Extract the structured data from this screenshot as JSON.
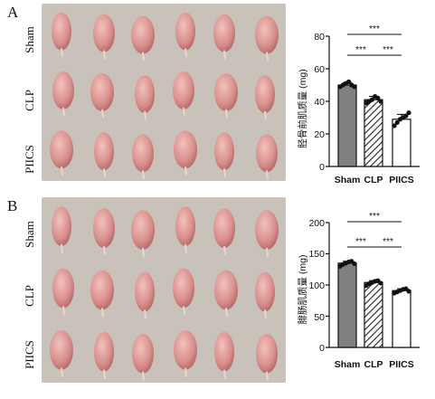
{
  "panels": [
    {
      "letter": "A",
      "row_labels": [
        "Sham",
        "CLP",
        "PIICS"
      ],
      "image_caption": "",
      "chart": {
        "ylabel": "胫骨前肌质量 (mg)",
        "yticks": [
          "0",
          "20",
          "40",
          "60",
          "80"
        ],
        "sig": [
          "***",
          "***",
          "***"
        ]
      }
    },
    {
      "letter": "B",
      "row_labels": [
        "Sham",
        "CLP",
        "PIICS"
      ],
      "image_caption": "",
      "chart": {
        "ylabel": "腓肠肌质量 (mg)",
        "yticks": [
          "0",
          "50",
          "100",
          "150",
          "200"
        ],
        "sig": [
          "***",
          "***",
          "***"
        ]
      }
    }
  ],
  "colors": {
    "sham": "#808080",
    "clp_hatch": "#222222",
    "piics": "#ffffff",
    "photo_bg": "#c9c2ba",
    "tissue": "#d98f8c"
  },
  "chart_data": [
    {
      "type": "bar",
      "categories": [
        "Sham",
        "CLP",
        "PIICS"
      ],
      "values": [
        50,
        41,
        29
      ],
      "errors": [
        1.5,
        2.0,
        3.0
      ],
      "points": [
        [
          49,
          50,
          51,
          52,
          50,
          49
        ],
        [
          39,
          40,
          41,
          43,
          42,
          40
        ],
        [
          25,
          27,
          29,
          30,
          31,
          33
        ]
      ],
      "fills": [
        "gray",
        "hatched",
        "white"
      ],
      "ylabel": "胫骨前肌质量 (mg)",
      "ylim": [
        0,
        80
      ],
      "significance": [
        {
          "from": "Sham",
          "to": "PIICS",
          "label": "***"
        },
        {
          "from": "Sham",
          "to": "CLP",
          "label": "***"
        },
        {
          "from": "CLP",
          "to": "PIICS",
          "label": "***"
        }
      ]
    },
    {
      "type": "bar",
      "categories": [
        "Sham",
        "CLP",
        "PIICS"
      ],
      "values": [
        135,
        104,
        91
      ],
      "errors": [
        3,
        3,
        3
      ],
      "points": [
        [
          130,
          133,
          135,
          137,
          138,
          134
        ],
        [
          99,
          102,
          104,
          106,
          107,
          103
        ],
        [
          87,
          89,
          91,
          93,
          94,
          90
        ]
      ],
      "fills": [
        "gray",
        "hatched",
        "white"
      ],
      "ylabel": "腓肠肌质量 (mg)",
      "ylim": [
        0,
        200
      ],
      "significance": [
        {
          "from": "Sham",
          "to": "PIICS",
          "label": "***"
        },
        {
          "from": "Sham",
          "to": "CLP",
          "label": "***"
        },
        {
          "from": "CLP",
          "to": "PIICS",
          "label": "***"
        }
      ]
    }
  ]
}
